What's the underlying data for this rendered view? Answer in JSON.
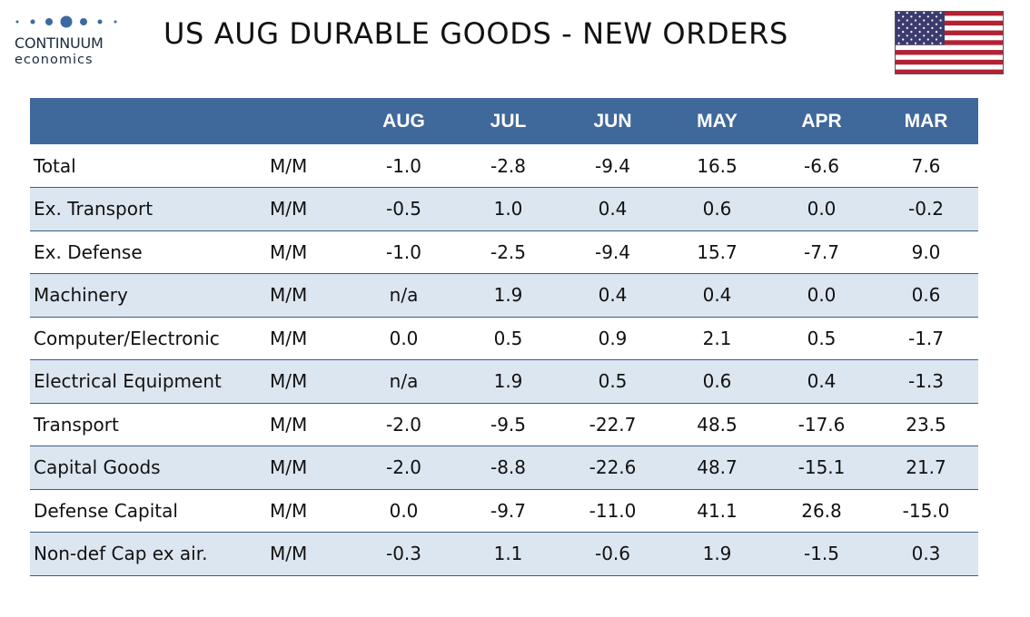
{
  "logo": {
    "name": "CONTINUUM",
    "sub": "economics"
  },
  "title": "US AUG DURABLE GOODS - NEW ORDERS",
  "colors": {
    "header": "#3f689b",
    "stripe": "#dce6f1",
    "divider": "#3b5c86",
    "logo": "#3a6aa0"
  },
  "table": {
    "columns": [
      "",
      "",
      "AUG",
      "JUL",
      "JUN",
      "MAY",
      "APR",
      "MAR"
    ],
    "rows": [
      {
        "label": "Total",
        "unit": "M/M",
        "values": [
          "-1.0",
          "-2.8",
          "-9.4",
          "16.5",
          "-6.6",
          "7.6"
        ]
      },
      {
        "label": "Ex. Transport",
        "unit": "M/M",
        "values": [
          "-0.5",
          "1.0",
          "0.4",
          "0.6",
          "0.0",
          "-0.2"
        ]
      },
      {
        "label": "Ex. Defense",
        "unit": "M/M",
        "values": [
          "-1.0",
          "-2.5",
          "-9.4",
          "15.7",
          "-7.7",
          "9.0"
        ]
      },
      {
        "label": "Machinery",
        "unit": "M/M",
        "values": [
          "n/a",
          "1.9",
          "0.4",
          "0.4",
          "0.0",
          "0.6"
        ]
      },
      {
        "label": "Computer/Electronic",
        "unit": "M/M",
        "values": [
          "0.0",
          "0.5",
          "0.9",
          "2.1",
          "0.5",
          "-1.7"
        ]
      },
      {
        "label": "Electrical Equipment",
        "unit": "M/M",
        "values": [
          "n/a",
          "1.9",
          "0.5",
          "0.6",
          "0.4",
          "-1.3"
        ]
      },
      {
        "label": "Transport",
        "unit": "M/M",
        "values": [
          "-2.0",
          "-9.5",
          "-22.7",
          "48.5",
          "-17.6",
          "23.5"
        ]
      },
      {
        "label": "Capital Goods",
        "unit": "M/M",
        "values": [
          "-2.0",
          "-8.8",
          "-22.6",
          "48.7",
          "-15.1",
          "21.7"
        ]
      },
      {
        "label": "Defense Capital",
        "unit": "M/M",
        "values": [
          "0.0",
          "-9.7",
          "-11.0",
          "41.1",
          "26.8",
          "-15.0"
        ]
      },
      {
        "label": "Non-def Cap ex air.",
        "unit": "M/M",
        "values": [
          "-0.3",
          "1.1",
          "-0.6",
          "1.9",
          "-1.5",
          "0.3"
        ]
      }
    ]
  },
  "flag": {
    "icon": "us-flag-icon"
  }
}
